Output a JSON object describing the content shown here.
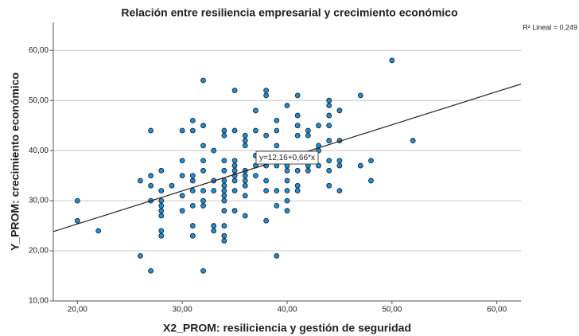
{
  "chart_data": {
    "type": "scatter",
    "title": "Relación entre resiliencia empresarial y crecimiento económico",
    "x_label": "X2_PROM: resiliciencia y gestión de seguridad",
    "y_label": "Y_PROM: crecimiento económico",
    "r2_label": "R² Lineal = 0,249",
    "fit": {
      "label": "y=12,16+0,66*x",
      "intercept": 12.16,
      "slope": 0.66
    },
    "color": "#1f8dd6",
    "grid": true,
    "xlim": [
      17.7,
      62.3
    ],
    "ylim": [
      10,
      65.6
    ],
    "xticks": [
      {
        "value": 20,
        "label": "20,00"
      },
      {
        "value": 30,
        "label": "30,00"
      },
      {
        "value": 40,
        "label": "40,00"
      },
      {
        "value": 50,
        "label": "50,00"
      },
      {
        "value": 60,
        "label": "60,00"
      }
    ],
    "yticks": [
      {
        "value": 10,
        "label": "10,00"
      },
      {
        "value": 20,
        "label": "20,00"
      },
      {
        "value": 30,
        "label": "30,00"
      },
      {
        "value": 40,
        "label": "40,00"
      },
      {
        "value": 50,
        "label": "50,00"
      },
      {
        "value": 60,
        "label": "60,00"
      }
    ],
    "x": [
      20,
      20,
      22,
      26,
      26,
      27,
      27,
      27,
      27,
      27,
      28,
      28,
      28,
      28,
      28,
      28,
      28,
      28,
      29,
      30,
      30,
      30,
      30,
      30,
      31,
      31,
      31,
      31,
      31,
      31,
      31,
      31,
      32,
      32,
      32,
      32,
      32,
      32,
      32,
      32,
      32,
      33,
      33,
      33,
      33,
      33,
      34,
      34,
      34,
      34,
      34,
      34,
      34,
      34,
      34,
      34,
      34,
      34,
      34,
      35,
      35,
      35,
      35,
      35,
      35,
      35,
      35,
      35,
      36,
      36,
      36,
      36,
      36,
      36,
      36,
      36,
      36,
      37,
      37,
      37,
      37,
      37,
      38,
      38,
      38,
      38,
      38,
      38,
      38,
      38,
      39,
      39,
      39,
      39,
      39,
      39,
      39,
      39,
      40,
      40,
      40,
      40,
      40,
      40,
      40,
      40,
      40,
      41,
      41,
      41,
      41,
      41,
      41,
      41,
      41,
      42,
      42,
      42,
      42,
      42,
      43,
      43,
      43,
      43,
      44,
      44,
      44,
      44,
      44,
      44,
      44,
      44,
      45,
      45,
      45,
      45,
      45,
      47,
      47,
      48,
      48,
      50,
      52
    ],
    "values": [
      30,
      26,
      24,
      34,
      19,
      44,
      35,
      33,
      30,
      16,
      36,
      32,
      30,
      29,
      28,
      27,
      24,
      23,
      33,
      44,
      38,
      35,
      31,
      28,
      46,
      44,
      35,
      34,
      32,
      29,
      25,
      23,
      54,
      45,
      41,
      38,
      36,
      32,
      30,
      29,
      16,
      40,
      34,
      32,
      25,
      24,
      44,
      43,
      38,
      36,
      34,
      33,
      32,
      31,
      30,
      28,
      25,
      23,
      22,
      52,
      44,
      38,
      37,
      36,
      35,
      34,
      32,
      28,
      43,
      42,
      41,
      36,
      35,
      34,
      33,
      31,
      27,
      48,
      44,
      39,
      37,
      35,
      52,
      51,
      43,
      38,
      37,
      34,
      32,
      26,
      46,
      44,
      41,
      38,
      37,
      32,
      29,
      19,
      49,
      39,
      38,
      37,
      36,
      34,
      32,
      30,
      28,
      51,
      47,
      45,
      43,
      38,
      36,
      33,
      32,
      44,
      43,
      38,
      37,
      36,
      45,
      41,
      40,
      37,
      50,
      49,
      47,
      45,
      42,
      38,
      36,
      33,
      48,
      42,
      38,
      37,
      32,
      51,
      37,
      38,
      34,
      58,
      42
    ]
  }
}
